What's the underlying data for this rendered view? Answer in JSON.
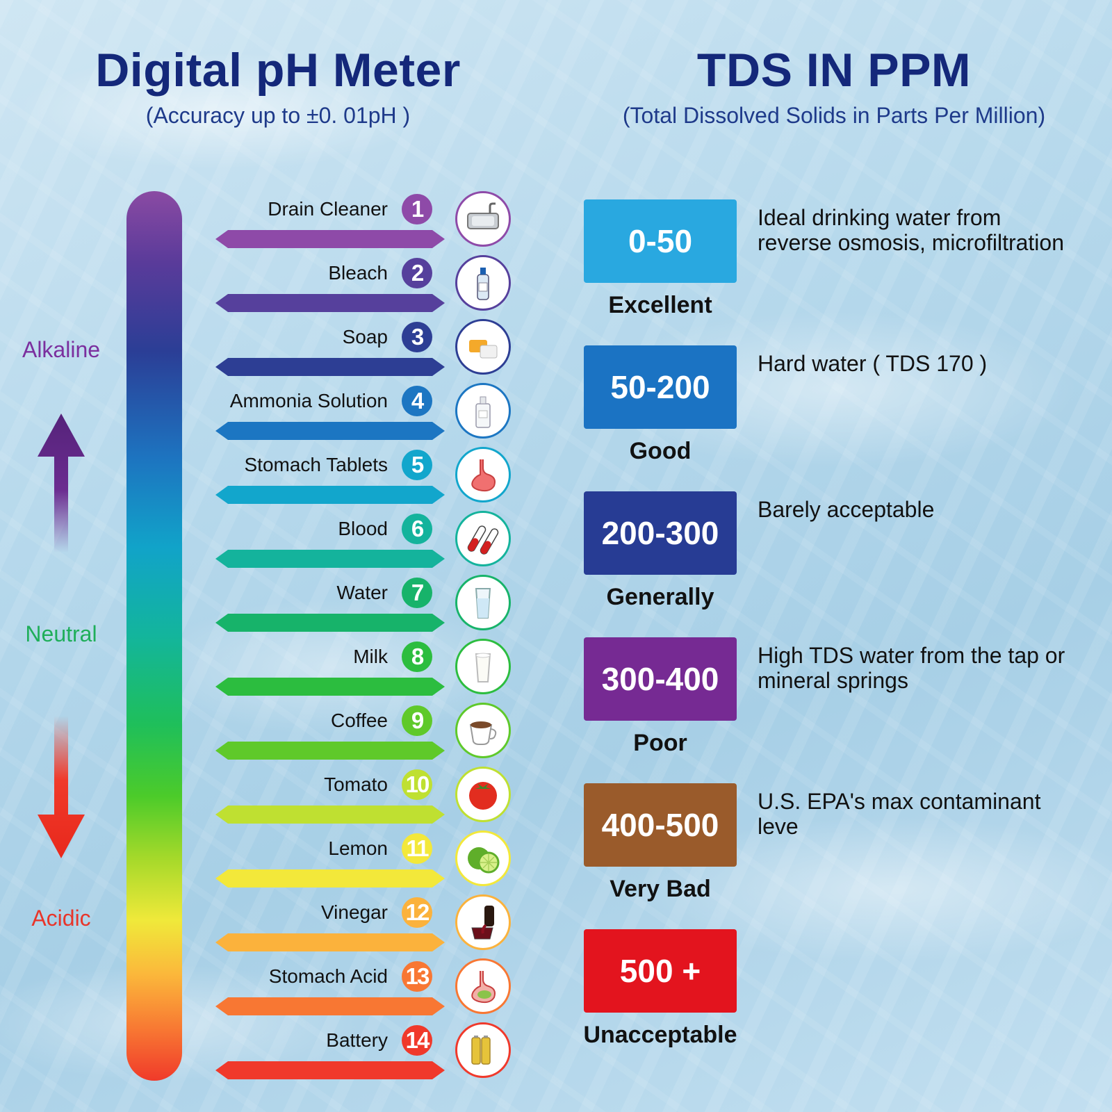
{
  "ph_header": {
    "title": "Digital pH Meter",
    "subtitle": "(Accuracy up to  ±0. 01pH )"
  },
  "tds_header": {
    "title": "TDS IN PPM",
    "subtitle": "(Total Dissolved Solids in Parts Per Million)"
  },
  "side_labels": {
    "alkaline": "Alkaline",
    "neutral": "Neutral",
    "acidic": "Acidic"
  },
  "ph_scale": [
    {
      "num": "1",
      "label": "Drain Cleaner",
      "color": "#8e4aa8",
      "icon": "sink-icon"
    },
    {
      "num": "2",
      "label": "Bleach",
      "color": "#56409c",
      "icon": "bleach-bottle-icon"
    },
    {
      "num": "3",
      "label": "Soap",
      "color": "#2d3e94",
      "icon": "soap-icon"
    },
    {
      "num": "4",
      "label": "Ammonia Solution",
      "color": "#1c76c2",
      "icon": "ammonia-bottle-icon"
    },
    {
      "num": "5",
      "label": "Stomach Tablets",
      "color": "#12a6cc",
      "icon": "stomach-icon"
    },
    {
      "num": "6",
      "label": "Blood",
      "color": "#14b39c",
      "icon": "blood-tubes-icon"
    },
    {
      "num": "7",
      "label": "Water",
      "color": "#17b36a",
      "icon": "water-glass-icon"
    },
    {
      "num": "8",
      "label": "Milk",
      "color": "#2cbd3f",
      "icon": "milk-glass-icon"
    },
    {
      "num": "9",
      "label": "Coffee",
      "color": "#5fc92a",
      "icon": "coffee-cup-icon"
    },
    {
      "num": "10",
      "label": "Tomato",
      "color": "#bfe031",
      "icon": "tomato-icon"
    },
    {
      "num": "11",
      "label": "Lemon",
      "color": "#f3e83a",
      "icon": "lime-icon"
    },
    {
      "num": "12",
      "label": "Vinegar",
      "color": "#fbb23c",
      "icon": "vinegar-icon"
    },
    {
      "num": "13",
      "label": "Stomach Acid",
      "color": "#f87733",
      "icon": "stomach-acid-icon"
    },
    {
      "num": "14",
      "label": "Battery",
      "color": "#f0392b",
      "icon": "battery-icon"
    }
  ],
  "tds_levels": [
    {
      "range": "0-50",
      "rating": "Excellent",
      "color": "#29a8e0",
      "description": "Ideal drinking water from reverse osmosis, microfiltration"
    },
    {
      "range": "50-200",
      "rating": "Good",
      "color": "#1b73c3",
      "description": "Hard water ( TDS 170 )"
    },
    {
      "range": "200-300",
      "rating": "Generally",
      "color": "#273c94",
      "description": "Barely acceptable"
    },
    {
      "range": "300-400",
      "rating": "Poor",
      "color": "#762a93",
      "description": "High TDS water from the tap or mineral springs"
    },
    {
      "range": "400-500",
      "rating": "Very Bad",
      "color": "#9a5b2b",
      "description": "U.S. EPA's max contaminant leve"
    },
    {
      "range": "500 +",
      "rating": "Unacceptable",
      "color": "#e3141e",
      "description": ""
    }
  ]
}
